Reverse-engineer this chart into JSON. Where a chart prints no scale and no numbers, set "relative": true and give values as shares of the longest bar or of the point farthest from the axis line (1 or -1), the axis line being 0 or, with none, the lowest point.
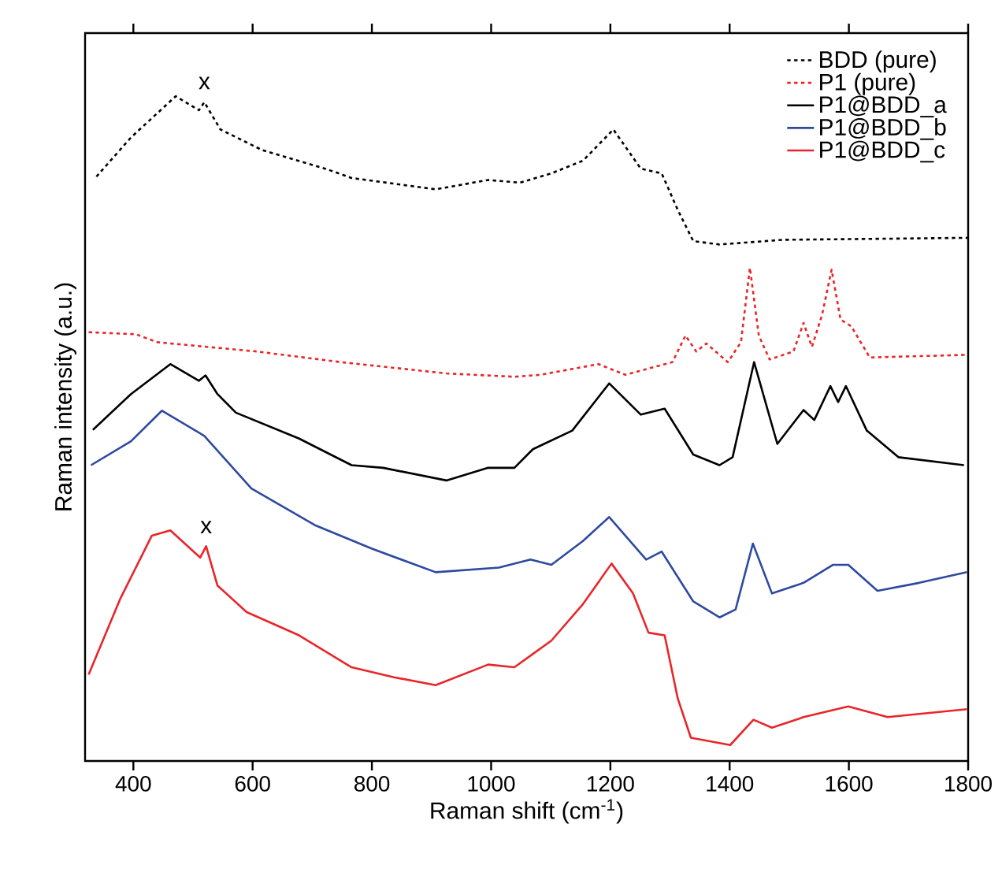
{
  "chart_data": {
    "type": "line",
    "relative": true,
    "xlabel": "Raman shift (cm$^{-1}$)",
    "ylabel": "Raman intensity (a.u.)",
    "xlim": [
      319,
      1800
    ],
    "xticks": [
      400,
      600,
      800,
      1000,
      1200,
      1400,
      1600,
      1800
    ],
    "tick_labels": "x",
    "legend": "top right",
    "annotations": [
      {
        "text": "x",
        "x": 519,
        "y": 0.991
      },
      {
        "text": "x",
        "x": 522,
        "y": 0.323
      }
    ],
    "series": [
      {
        "name": "BDD (pure)",
        "color": "#000000",
        "line_style": "dotted",
        "x": [
          338,
          396,
          471,
          510,
          519,
          546,
          616,
          722,
          766,
          907,
          995,
          1048,
          1101,
          1154,
          1205,
          1251,
          1286,
          1313,
          1339,
          1383,
          1489,
          1800
        ],
        "values": [
          0.879,
          0.938,
          1.0,
          0.979,
          0.991,
          0.95,
          0.919,
          0.891,
          0.877,
          0.86,
          0.874,
          0.87,
          0.884,
          0.903,
          0.95,
          0.891,
          0.884,
          0.829,
          0.782,
          0.777,
          0.784,
          0.787
        ]
      },
      {
        "name": "P1 (pure)",
        "color": "#e8262a",
        "line_style": "dotted",
        "x": [
          325,
          404,
          440,
          607,
          748,
          925,
          1039,
          1083,
          1180,
          1225,
          1304,
          1326,
          1344,
          1361,
          1397,
          1419,
          1434,
          1449,
          1467,
          1507,
          1524,
          1538,
          1555,
          1571,
          1586,
          1604,
          1635,
          1798
        ],
        "values": [
          0.645,
          0.642,
          0.63,
          0.616,
          0.6,
          0.583,
          0.578,
          0.581,
          0.597,
          0.581,
          0.6,
          0.64,
          0.616,
          0.628,
          0.6,
          0.63,
          0.742,
          0.64,
          0.604,
          0.616,
          0.659,
          0.623,
          0.671,
          0.739,
          0.664,
          0.654,
          0.607,
          0.611
        ]
      },
      {
        "name": "P1@BDD_a",
        "color": "#000000",
        "line_style": "solid",
        "x": [
          332,
          396,
          462,
          510,
          521,
          541,
          572,
          678,
          766,
          819,
          925,
          995,
          1039,
          1070,
          1136,
          1198,
          1251,
          1291,
          1339,
          1383,
          1405,
          1441,
          1480,
          1524,
          1542,
          1569,
          1582,
          1595,
          1630,
          1683,
          1793
        ],
        "values": [
          0.498,
          0.552,
          0.597,
          0.572,
          0.58,
          0.552,
          0.524,
          0.485,
          0.445,
          0.441,
          0.422,
          0.441,
          0.441,
          0.469,
          0.497,
          0.568,
          0.521,
          0.53,
          0.461,
          0.445,
          0.457,
          0.6,
          0.477,
          0.528,
          0.513,
          0.564,
          0.54,
          0.564,
          0.497,
          0.457,
          0.445
        ]
      },
      {
        "name": "P1@BDD_b",
        "color": "#2e4aa0",
        "line_style": "solid",
        "x": [
          329,
          396,
          448,
          519,
          598,
          704,
          801,
          907,
          1013,
          1066,
          1101,
          1154,
          1198,
          1260,
          1286,
          1339,
          1383,
          1410,
          1439,
          1471,
          1524,
          1573,
          1599,
          1648,
          1718,
          1798
        ],
        "values": [
          0.445,
          0.481,
          0.527,
          0.489,
          0.41,
          0.355,
          0.319,
          0.284,
          0.291,
          0.303,
          0.295,
          0.331,
          0.367,
          0.303,
          0.315,
          0.24,
          0.216,
          0.228,
          0.327,
          0.252,
          0.268,
          0.295,
          0.295,
          0.256,
          0.268,
          0.284
        ]
      },
      {
        "name": "P1@BDD_c",
        "color": "#e8262a",
        "line_style": "solid",
        "x": [
          325,
          378,
          431,
          462,
          512,
          522,
          541,
          590,
          678,
          766,
          837,
          907,
          995,
          1039,
          1070,
          1101,
          1154,
          1202,
          1238,
          1264,
          1291,
          1313,
          1335,
          1401,
          1440,
          1471,
          1524,
          1599,
          1665,
          1798
        ],
        "values": [
          0.13,
          0.244,
          0.339,
          0.347,
          0.306,
          0.323,
          0.264,
          0.224,
          0.189,
          0.141,
          0.126,
          0.114,
          0.145,
          0.141,
          0.161,
          0.181,
          0.236,
          0.297,
          0.252,
          0.193,
          0.189,
          0.094,
          0.035,
          0.024,
          0.062,
          0.05,
          0.066,
          0.082,
          0.066,
          0.078
        ]
      }
    ]
  }
}
